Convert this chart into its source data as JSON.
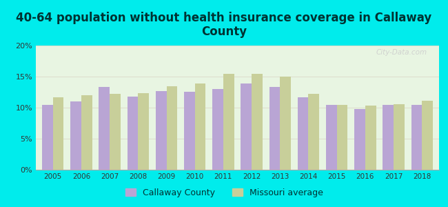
{
  "title": "40-64 population without health insurance coverage in Callaway\nCounty",
  "years": [
    2005,
    2006,
    2007,
    2008,
    2009,
    2010,
    2011,
    2012,
    2013,
    2014,
    2015,
    2016,
    2017,
    2018
  ],
  "callaway": [
    10.5,
    11.0,
    13.3,
    11.8,
    12.7,
    12.6,
    13.0,
    13.9,
    13.3,
    11.7,
    10.4,
    9.8,
    10.4,
    10.5
  ],
  "missouri": [
    11.7,
    12.0,
    12.2,
    12.3,
    13.4,
    13.9,
    15.4,
    15.4,
    15.0,
    12.2,
    10.4,
    10.3,
    10.6,
    11.1
  ],
  "callaway_color": "#b9a5d4",
  "missouri_color": "#c8cf9a",
  "background_outer": "#00ecec",
  "background_chart_top": "#e8f5e8",
  "background_chart_bottom": "#f5fff5",
  "ylim": [
    0,
    20
  ],
  "yticks": [
    0,
    5,
    10,
    15,
    20
  ],
  "title_fontsize": 12,
  "title_color": "#003333",
  "legend_callaway": "Callaway County",
  "legend_missouri": "Missouri average",
  "bar_width": 0.38
}
